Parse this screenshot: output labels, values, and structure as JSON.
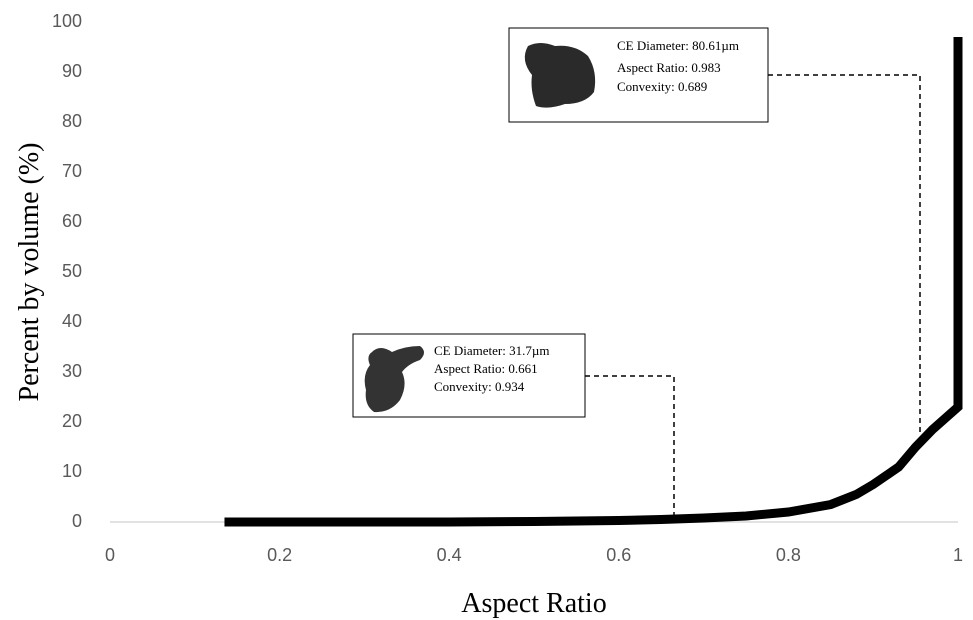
{
  "chart_data": {
    "type": "line",
    "x_label": "Aspect Ratio",
    "y_label": "Percent by volume (%)",
    "x": [
      0.135,
      0.2,
      0.3,
      0.4,
      0.5,
      0.6,
      0.65,
      0.7,
      0.75,
      0.8,
      0.85,
      0.88,
      0.9,
      0.93,
      0.95,
      0.97,
      0.99,
      1,
      1
    ],
    "series": [
      {
        "color": "#000000",
        "values": [
          0,
          0,
          0,
          0,
          0.1,
          0.3,
          0.5,
          0.8,
          1.2,
          2,
          3.5,
          5.5,
          7.5,
          11,
          15,
          18.5,
          21.5,
          23,
          97
        ]
      }
    ],
    "xlim": [
      0,
      1
    ],
    "xticks": [
      0,
      0.2,
      0.4,
      0.6,
      0.8,
      1
    ],
    "ylim": [
      0,
      100
    ],
    "yticks": [
      0,
      10,
      20,
      30,
      40,
      50,
      60,
      70,
      80,
      90,
      100
    ],
    "grid": false,
    "annotations": [
      {
        "lines": [
          "CE Diameter: 31.7µm",
          "Aspect Ratio: 0.661",
          "Convexity: 0.934"
        ]
      },
      {
        "lines": [
          "CE Diameter: 80.61µm",
          "Aspect Ratio: 0.983",
          "Convexity: 0.689"
        ]
      }
    ]
  }
}
